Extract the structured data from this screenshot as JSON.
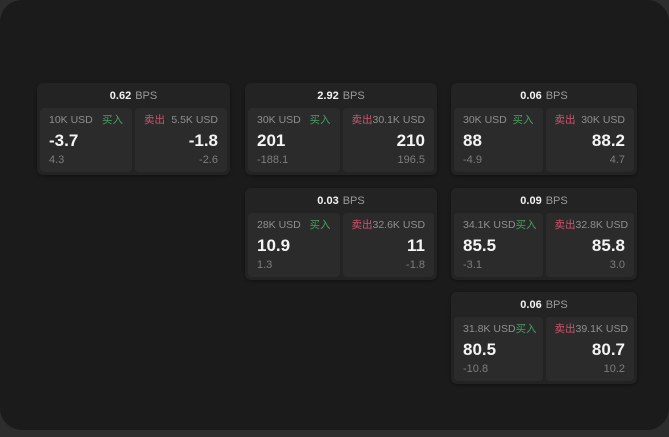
{
  "labels": {
    "buy": "买入",
    "sell": "卖出",
    "bps_unit": "BPS"
  },
  "colors": {
    "outer_background": "#2d2d2d",
    "panel_background": "#1b1b1b",
    "card_background": "#232323",
    "subpanel_background": "#2b2b2b",
    "buy_green": "#46a05f",
    "sell_red": "#cf5470",
    "primary_text": "#f4f4f4",
    "muted_text": "#8f8f8f"
  },
  "cards": [
    {
      "bps": "0.62",
      "buy": {
        "amount": "10K USD",
        "price": "-3.7",
        "delta": "4.3"
      },
      "sell": {
        "amount": "5.5K USD",
        "price": "-1.8",
        "delta": "-2.6"
      }
    },
    {
      "bps": "2.92",
      "buy": {
        "amount": "30K USD",
        "price": "201",
        "delta": "-188.1"
      },
      "sell": {
        "amount": "30.1K USD",
        "price": "210",
        "delta": "196.5"
      }
    },
    {
      "bps": "0.06",
      "buy": {
        "amount": "30K USD",
        "price": "88",
        "delta": "-4.9"
      },
      "sell": {
        "amount": "30K USD",
        "price": "88.2",
        "delta": "4.7"
      }
    },
    {
      "bps": "0.03",
      "buy": {
        "amount": "28K USD",
        "price": "10.9",
        "delta": "1.3"
      },
      "sell": {
        "amount": "32.6K USD",
        "price": "11",
        "delta": "-1.8"
      }
    },
    {
      "bps": "0.09",
      "buy": {
        "amount": "34.1K USD",
        "price": "85.5",
        "delta": "-3.1"
      },
      "sell": {
        "amount": "32.8K USD",
        "price": "85.8",
        "delta": "3.0"
      }
    },
    {
      "bps": "0.06",
      "buy": {
        "amount": "31.8K USD",
        "price": "80.5",
        "delta": "-10.8"
      },
      "sell": {
        "amount": "39.1K USD",
        "price": "80.7",
        "delta": "10.2"
      }
    }
  ]
}
